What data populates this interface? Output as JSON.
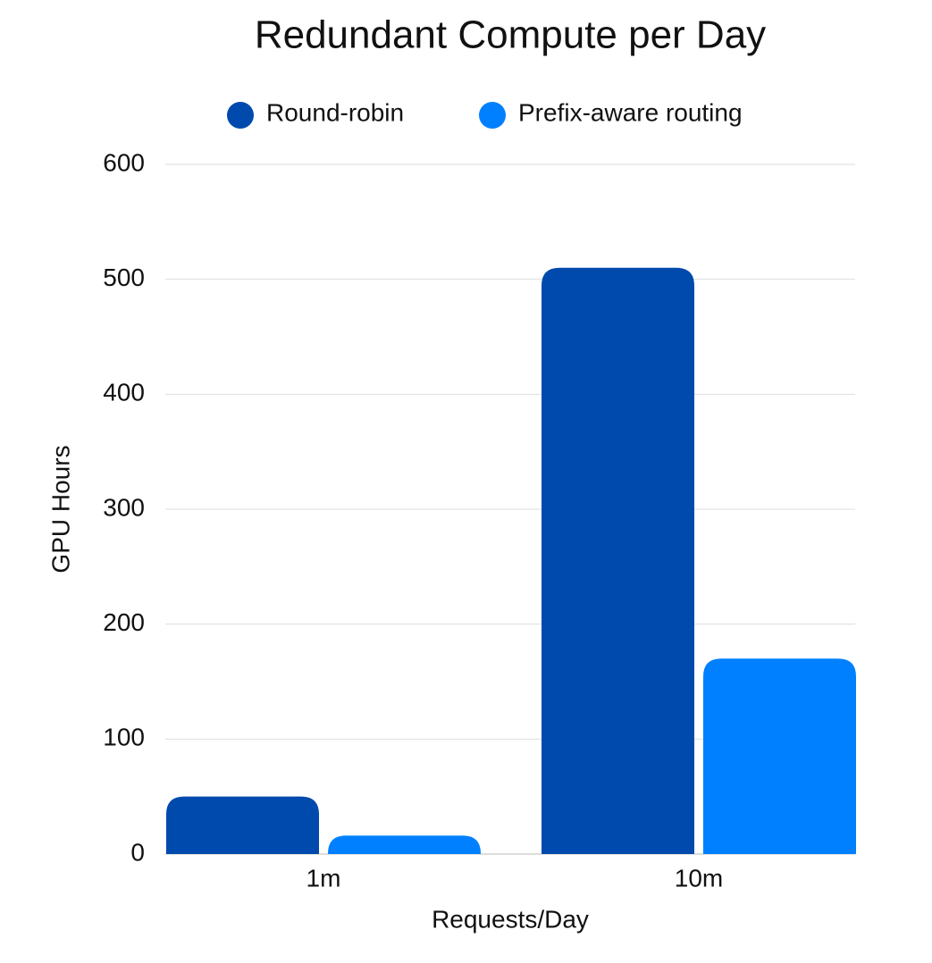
{
  "chart_data": {
    "type": "bar",
    "title": "Redundant Compute per Day",
    "x_label": "Requests/Day",
    "y_label": "GPU Hours",
    "categories": [
      "1m",
      "10m"
    ],
    "series": [
      {
        "name": "Round-robin",
        "color": "#004aad",
        "values": [
          50,
          510
        ]
      },
      {
        "name": "Prefix-aware routing",
        "color": "#0080ff",
        "values": [
          16,
          170
        ]
      }
    ],
    "ylim": [
      0,
      600
    ],
    "yticks": [
      0,
      100,
      200,
      300,
      400,
      500,
      600
    ],
    "grid": true,
    "legend": "top"
  }
}
